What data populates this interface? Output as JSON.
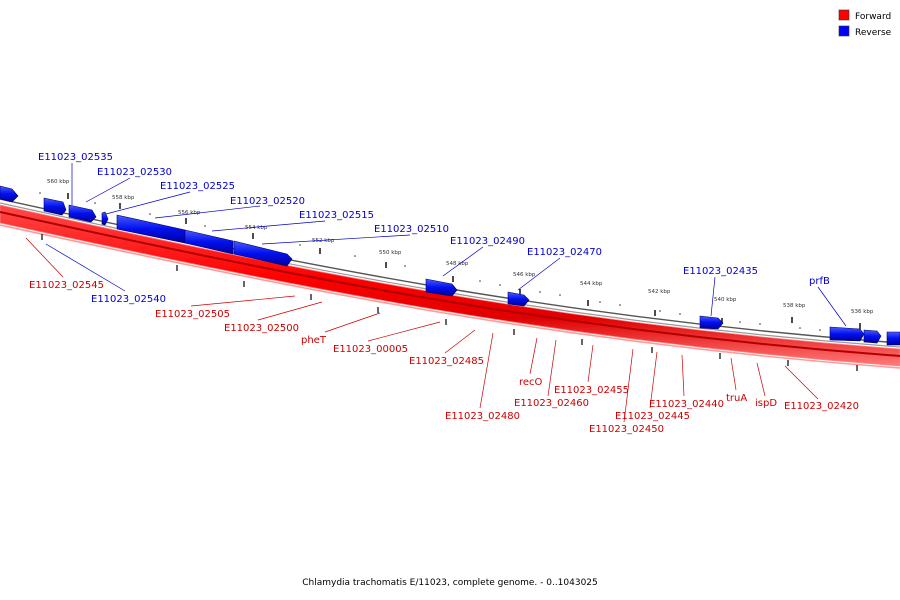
{
  "caption": "Chlamydia trachomatis E/11023, complete genome. - 0..1043025",
  "legend": [
    {
      "label": "Forward",
      "color": "#ff0000"
    },
    {
      "label": "Reverse",
      "color": "#0000ff"
    }
  ],
  "colors": {
    "forward": "#ff0000",
    "reverse": "#0000ff",
    "forward_label": "#cc0000",
    "reverse_label": "#0000cc"
  },
  "scale_ticks": [
    "560 kbp",
    "558 kbp",
    "556 kbp",
    "554 kbp",
    "552 kbp",
    "550 kbp",
    "548 kbp",
    "546 kbp",
    "544 kbp",
    "542 kbp",
    "540 kbp",
    "538 kbp",
    "536 kbp"
  ],
  "reverse_labels": [
    "E11023_02535",
    "E11023_02530",
    "E11023_02525",
    "E11023_02520",
    "E11023_02515",
    "E11023_02510",
    "E11023_02490",
    "E11023_02470",
    "E11023_02435",
    "prfB",
    "E11023_02540"
  ],
  "forward_labels": [
    "E11023_02545",
    "E11023_02505",
    "E11023_02500",
    "pheT",
    "E11023_00005",
    "E11023_02485",
    "E11023_02480",
    "recO",
    "E11023_02460",
    "E11023_02455",
    "E11023_02450",
    "E11023_02445",
    "E11023_02440",
    "truA",
    "ispD",
    "E11023_02420"
  ]
}
